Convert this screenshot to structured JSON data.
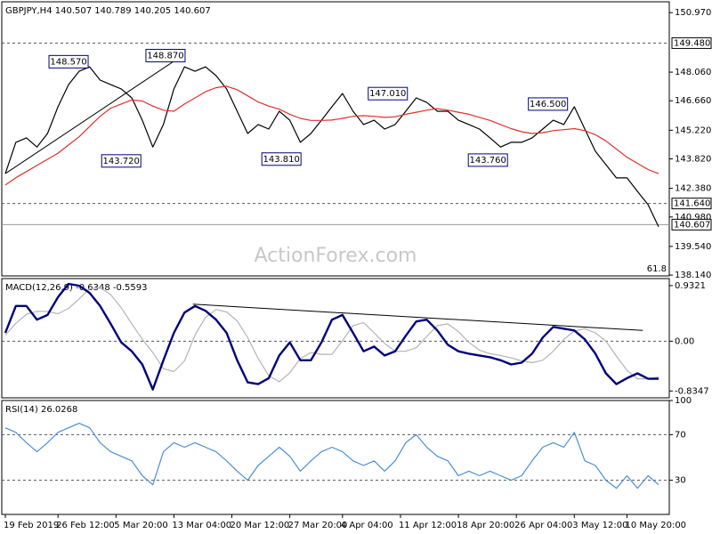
{
  "chart_data": [
    {
      "type": "line",
      "title": "GBPJPY,H4  140.507 140.789 140.205 140.607",
      "watermark": "ActionForex.com",
      "fib_label": "61.8",
      "xlim": [
        0,
        62
      ],
      "ylim": [
        138.1,
        151.5
      ],
      "yticks": [
        {
          "value": 150.97,
          "label": "150.970"
        },
        {
          "value": 148.06,
          "label": "148.060"
        },
        {
          "value": 146.66,
          "label": "146.660"
        },
        {
          "value": 145.22,
          "label": "145.220"
        },
        {
          "value": 143.82,
          "label": "143.820"
        },
        {
          "value": 142.38,
          "label": "142.380"
        },
        {
          "value": 140.98,
          "label": "140.980"
        },
        {
          "value": 139.54,
          "label": "139.540"
        },
        {
          "value": 138.14,
          "label": "138.140"
        }
      ],
      "levels": [
        {
          "value": 149.48,
          "label": "149.480",
          "style": "dashed"
        },
        {
          "value": 141.64,
          "label": "141.640",
          "style": "dashed"
        },
        {
          "value": 140.607,
          "label": "140.607",
          "style": "solid"
        }
      ],
      "series": [
        {
          "color": "#000000",
          "values": [
            143.1,
            144.63,
            144.85,
            144.4,
            145.06,
            146.37,
            147.45,
            148.1,
            148.32,
            147.67,
            147.45,
            147.24,
            146.8,
            145.71,
            144.4,
            145.5,
            147.24,
            148.32,
            148.1,
            148.32,
            147.89,
            147.24,
            146.15,
            145.06,
            145.5,
            145.28,
            146.15,
            145.71,
            144.63,
            145.06,
            145.71,
            146.37,
            147.02,
            146.15,
            145.5,
            145.71,
            145.28,
            145.5,
            146.15,
            146.8,
            146.58,
            146.15,
            146.15,
            145.71,
            145.5,
            145.28,
            144.85,
            144.4,
            144.63,
            144.63,
            144.85,
            145.28,
            145.71,
            145.5,
            146.37,
            145.28,
            144.19,
            143.54,
            142.89,
            142.89,
            142.23,
            141.58,
            140.5
          ]
        },
        {
          "color": "#e0302a",
          "values": [
            142.54,
            142.9,
            143.2,
            143.5,
            143.8,
            144.1,
            144.5,
            144.9,
            145.4,
            145.9,
            146.3,
            146.5,
            146.7,
            146.65,
            146.4,
            146.2,
            146.15,
            146.5,
            146.8,
            147.1,
            147.3,
            147.37,
            147.2,
            146.9,
            146.6,
            146.4,
            146.25,
            146.0,
            145.8,
            145.7,
            145.7,
            145.72,
            145.8,
            145.9,
            145.93,
            145.9,
            145.85,
            145.88,
            146.0,
            146.1,
            146.2,
            146.28,
            146.2,
            146.1,
            146.0,
            145.85,
            145.7,
            145.5,
            145.3,
            145.15,
            145.06,
            145.1,
            145.2,
            145.25,
            145.3,
            145.2,
            145.0,
            144.7,
            144.3,
            143.9,
            143.6,
            143.3,
            143.1
          ]
        }
      ],
      "annotations": [
        {
          "x": 6,
          "value": 148.57,
          "label": "148.570"
        },
        {
          "x": 15.2,
          "value": 148.87,
          "label": "148.870"
        },
        {
          "x": 11,
          "value": 143.72,
          "label": "143.720"
        },
        {
          "x": 26.2,
          "value": 143.81,
          "label": "143.810"
        },
        {
          "x": 36.3,
          "value": 147.01,
          "label": "147.010"
        },
        {
          "x": 45.8,
          "value": 143.76,
          "label": "143.760"
        },
        {
          "x": 51.5,
          "value": 146.5,
          "label": "146.500"
        }
      ],
      "trendlines": [
        {
          "x": [
            0,
            16.8
          ],
          "y": [
            143.1,
            148.87
          ]
        }
      ]
    },
    {
      "type": "line",
      "title": "MACD(12,26,9) -0.6348 -0.5593",
      "xlim": [
        0,
        62
      ],
      "ylim": [
        -0.95,
        1.05
      ],
      "yticks": [
        0.9321,
        {
          "value": 0,
          "label": "0.00"
        },
        -0.8347
      ],
      "levels": [
        {
          "value": 0,
          "style": "dashed"
        }
      ],
      "series": [
        {
          "color": "#b4b4b4",
          "values": [
            0.1,
            0.3,
            0.45,
            0.5,
            0.5,
            0.46,
            0.55,
            0.71,
            0.88,
            0.9,
            0.78,
            0.56,
            0.29,
            0.03,
            -0.19,
            -0.46,
            -0.51,
            -0.33,
            0.1,
            0.4,
            0.53,
            0.49,
            0.34,
            0.06,
            -0.29,
            -0.58,
            -0.68,
            -0.53,
            -0.29,
            -0.19,
            -0.22,
            -0.22,
            0.01,
            0.26,
            0.31,
            0.14,
            -0.04,
            -0.17,
            -0.17,
            -0.11,
            0.08,
            0.26,
            0.29,
            0.16,
            -0.02,
            -0.15,
            -0.21,
            -0.24,
            -0.28,
            -0.33,
            -0.36,
            -0.32,
            -0.17,
            0.03,
            0.17,
            0.21,
            0.14,
            0.0,
            -0.25,
            -0.49,
            -0.63,
            -0.63,
            -0.6
          ]
        },
        {
          "color": "#00007a",
          "values": [
            0.14,
            0.59,
            0.59,
            0.36,
            0.44,
            0.74,
            0.96,
            0.93,
            0.81,
            0.59,
            0.29,
            -0.02,
            -0.17,
            -0.39,
            -0.81,
            -0.32,
            0.14,
            0.48,
            0.59,
            0.51,
            0.36,
            0.14,
            -0.32,
            -0.69,
            -0.72,
            -0.62,
            -0.24,
            -0.02,
            -0.32,
            -0.32,
            -0.02,
            0.36,
            0.44,
            0.14,
            -0.17,
            -0.09,
            -0.24,
            -0.17,
            0.09,
            0.33,
            0.36,
            0.18,
            -0.06,
            -0.17,
            -0.21,
            -0.24,
            -0.27,
            -0.32,
            -0.39,
            -0.36,
            -0.21,
            0.06,
            0.24,
            0.21,
            0.18,
            0.03,
            -0.21,
            -0.54,
            -0.72,
            -0.62,
            -0.54,
            -0.63,
            -0.63
          ]
        }
      ],
      "trendlines": [
        {
          "x": [
            17.8,
            60.5
          ],
          "y": [
            0.62,
            0.18
          ]
        }
      ]
    },
    {
      "type": "line",
      "title": "RSI(14) 26.0268",
      "xlim": [
        0,
        62
      ],
      "ylim": [
        0,
        100
      ],
      "yticks": [
        100,
        70,
        30
      ],
      "levels": [
        {
          "value": 70,
          "style": "dashed"
        },
        {
          "value": 30,
          "style": "dashed"
        }
      ],
      "series": [
        {
          "color": "#4a8fd6",
          "values": [
            76,
            72,
            63,
            55,
            63,
            72,
            76,
            80,
            76,
            63,
            55,
            51,
            47,
            34,
            26,
            55,
            63,
            59,
            63,
            59,
            55,
            47,
            38,
            30,
            43,
            51,
            59,
            51,
            38,
            47,
            55,
            59,
            55,
            47,
            43,
            47,
            38,
            47,
            63,
            70,
            59,
            51,
            47,
            34,
            38,
            34,
            38,
            34,
            30,
            34,
            47,
            59,
            63,
            59,
            72,
            47,
            43,
            30,
            23,
            34,
            23,
            34,
            26
          ]
        }
      ],
      "xticks": [
        {
          "value": 0,
          "label": "19 Feb 2019"
        },
        {
          "value": 5,
          "label": "26 Feb 12:00"
        },
        {
          "value": 10.5,
          "label": "5 Mar 20:00"
        },
        {
          "value": 16,
          "label": "13 Mar 04:00"
        },
        {
          "value": 21.5,
          "label": "20 Mar 12:00"
        },
        {
          "value": 27,
          "label": "27 Mar 20:00"
        },
        {
          "value": 32,
          "label": "4 Apr 04:00"
        },
        {
          "value": 37.5,
          "label": "11 Apr 12:00"
        },
        {
          "value": 43,
          "label": "18 Apr 20:00"
        },
        {
          "value": 48.5,
          "label": "26 Apr 04:00"
        },
        {
          "value": 54,
          "label": "3 May 12:00"
        },
        {
          "value": 59,
          "label": "10 May 20:00"
        }
      ]
    }
  ]
}
